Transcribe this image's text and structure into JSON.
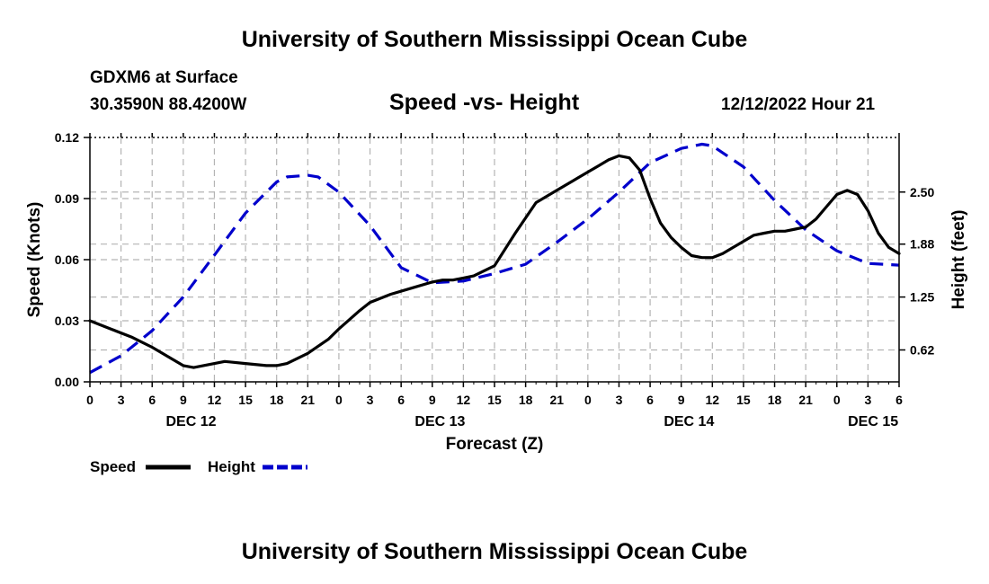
{
  "header": {
    "title": "University of Southern Mississippi Ocean Cube",
    "station": "GDXM6 at Surface",
    "location": "30.3590N  88.4200W",
    "subtitle": "Speed -vs- Height",
    "datetime": "12/12/2022 Hour 21",
    "footer_title": "University of Southern Mississippi Ocean Cube"
  },
  "chart_data": {
    "type": "line",
    "title": "Speed -vs- Height",
    "xlabel": "Forecast (Z)",
    "ylabel_left": "Speed (Knots)",
    "ylabel_right": "Height (feet)",
    "x_range_hours": [
      0,
      78
    ],
    "x_tick_labels": [
      "0",
      "3",
      "6",
      "9",
      "12",
      "15",
      "18",
      "21",
      "0",
      "3",
      "6",
      "9",
      "12",
      "15",
      "18",
      "21",
      "0",
      "3",
      "6",
      "9",
      "12",
      "15",
      "18",
      "21",
      "0",
      "3",
      "6"
    ],
    "date_labels": [
      {
        "text": "DEC 12",
        "hour": 9.75
      },
      {
        "text": "DEC 13",
        "hour": 33.75
      },
      {
        "text": "DEC 14",
        "hour": 57.75
      },
      {
        "text": "DEC 15",
        "hour": 75.5
      }
    ],
    "y_left": {
      "min": 0,
      "max": 0.12,
      "ticks": [
        "0.00",
        "0.03",
        "0.06",
        "0.09",
        "0.12"
      ]
    },
    "y_right": {
      "min": 0.24,
      "max": 3.15,
      "ticks": [
        "0.62",
        "1.25",
        "1.88",
        "2.50"
      ]
    },
    "grid": true,
    "series": [
      {
        "name": "Speed",
        "axis": "left",
        "color": "#000000",
        "style": "solid",
        "x": [
          0,
          2,
          4,
          6,
          8,
          9,
          10,
          12,
          13,
          15,
          17,
          18,
          19,
          21,
          23,
          24,
          26,
          27,
          29,
          31,
          33,
          34,
          35,
          36,
          37,
          39,
          41,
          43,
          45,
          47,
          48,
          49,
          50,
          51,
          52,
          53,
          54,
          55,
          56,
          57,
          58,
          59,
          60,
          61,
          62,
          63,
          64,
          65,
          66,
          67,
          68,
          69,
          70,
          71,
          72,
          73,
          74,
          75,
          76,
          77,
          78
        ],
        "values": [
          0.03,
          0.026,
          0.022,
          0.017,
          0.011,
          0.008,
          0.007,
          0.009,
          0.01,
          0.009,
          0.008,
          0.008,
          0.009,
          0.014,
          0.021,
          0.026,
          0.035,
          0.039,
          0.043,
          0.046,
          0.049,
          0.05,
          0.05,
          0.051,
          0.052,
          0.057,
          0.073,
          0.088,
          0.094,
          0.1,
          0.103,
          0.106,
          0.109,
          0.111,
          0.11,
          0.104,
          0.09,
          0.078,
          0.071,
          0.066,
          0.062,
          0.061,
          0.061,
          0.063,
          0.066,
          0.069,
          0.072,
          0.073,
          0.074,
          0.074,
          0.075,
          0.076,
          0.08,
          0.086,
          0.092,
          0.094,
          0.092,
          0.084,
          0.073,
          0.066,
          0.063
        ]
      },
      {
        "name": "Height",
        "axis": "right",
        "color": "#0000cc",
        "style": "dashed",
        "x": [
          0,
          3,
          6,
          9,
          12,
          15,
          18,
          19,
          21,
          22,
          24,
          27,
          30,
          33,
          36,
          39,
          42,
          45,
          48,
          51,
          54,
          57,
          59,
          60,
          63,
          66,
          69,
          72,
          75,
          78
        ],
        "values": [
          0.35,
          0.55,
          0.85,
          1.25,
          1.75,
          2.25,
          2.62,
          2.68,
          2.7,
          2.68,
          2.5,
          2.1,
          1.6,
          1.42,
          1.44,
          1.53,
          1.64,
          1.9,
          2.18,
          2.5,
          2.85,
          3.02,
          3.07,
          3.05,
          2.8,
          2.4,
          2.05,
          1.8,
          1.65,
          1.63
        ]
      }
    ],
    "legend": {
      "position": "bottom-left",
      "entries": [
        "Speed",
        "Height"
      ]
    }
  }
}
